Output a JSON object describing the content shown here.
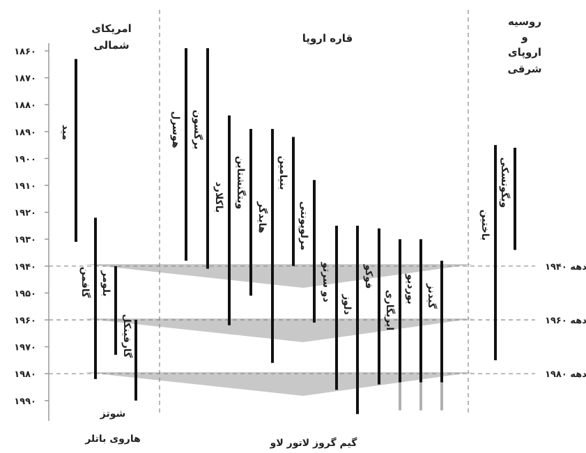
{
  "regions": {
    "north_america": [
      "امریکای",
      "شمالی"
    ],
    "europe": "قاره اروپا",
    "russia": [
      "روسیه",
      "و",
      "اروپای",
      "شرقی"
    ]
  },
  "year_ticks": [
    "۱۸۶۰",
    "۱۸۷۰",
    "۱۸۸۰",
    "۱۸۹۰",
    "۱۹۰۰",
    "۱۹۱۰",
    "۱۹۲۰",
    "۱۹۳۰",
    "۱۹۴۰",
    "۱۹۵۰",
    "۱۹۶۰",
    "۱۹۷۰",
    "۱۹۸۰",
    "۱۹۹۰"
  ],
  "decade_labels": [
    "دهه ۱۹۴۰",
    "دهه ۱۹۶۰",
    "دهه ۱۹۸۰"
  ],
  "decade_years": [
    1940,
    1960,
    1980
  ],
  "thinkers": [
    {
      "name": "مید",
      "region": "north_america",
      "start": 1863,
      "end": 1931
    },
    {
      "name": "گافمن",
      "region": "north_america",
      "start": 1922,
      "end": 1982
    },
    {
      "name": "بلومر",
      "region": "north_america",
      "start": 1940,
      "end": 1973
    },
    {
      "name": "گارفینکل",
      "region": "north_america",
      "start": 1960,
      "end": 1990
    },
    {
      "name": "هوسرل",
      "region": "europe",
      "start": 1859,
      "end": 1938
    },
    {
      "name": "برگسون",
      "region": "europe",
      "start": 1859,
      "end": 1941
    },
    {
      "name": "باکلارد",
      "region": "europe",
      "start": 1884,
      "end": 1962
    },
    {
      "name": "ویتگنشتاین",
      "region": "europe",
      "start": 1889,
      "end": 1951
    },
    {
      "name": "هایدگر",
      "region": "europe",
      "start": 1889,
      "end": 1976
    },
    {
      "name": "بنیامین",
      "region": "europe",
      "start": 1892,
      "end": 1940
    },
    {
      "name": "مرلوپونتی",
      "region": "europe",
      "start": 1908,
      "end": 1961
    },
    {
      "name": "دو سرتو",
      "region": "europe",
      "start": 1925,
      "end": 1986
    },
    {
      "name": "دلوز",
      "region": "europe",
      "start": 1925,
      "end": 1995
    },
    {
      "name": "فوکو",
      "region": "europe",
      "start": 1926,
      "end": 1984
    },
    {
      "name": "ایریگاری",
      "region": "europe",
      "start": 1930,
      "end": 1990,
      "living": true
    },
    {
      "name": "بوردیو",
      "region": "europe",
      "start": 1930,
      "end": 1990,
      "living": true
    },
    {
      "name": "گیدنز",
      "region": "europe",
      "start": 1938,
      "end": 1990,
      "living": true
    },
    {
      "name": "باختین",
      "region": "russia",
      "start": 1895,
      "end": 1975
    },
    {
      "name": "ویگوتسکی",
      "region": "russia",
      "start": 1896,
      "end": 1934
    }
  ],
  "footer": {
    "north_america": [
      "شوتز",
      "هاروی  باتلر"
    ],
    "europe": "گیم گروز لاتور لاو"
  },
  "colors": {
    "line": "#111111",
    "band": "#c8c8c8",
    "dash": "#888888",
    "living": "#b0b0b0"
  }
}
